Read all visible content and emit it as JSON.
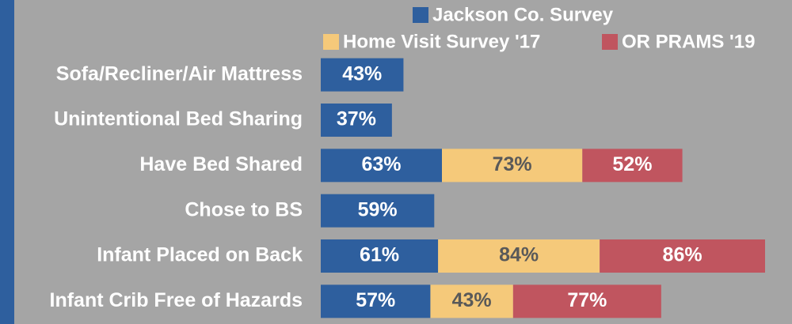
{
  "chart_data": {
    "type": "stacked-barh",
    "categories": [
      "Sofa/Recliner/Air Mattress",
      "Unintentional Bed Sharing",
      "Have Bed Shared",
      "Chose to BS",
      "Infant Placed on Back",
      "Infant Crib Free of Hazards"
    ],
    "series": [
      {
        "name": "Jackson Co. Survey",
        "color": "#2e5f9e",
        "values": [
          43,
          37,
          63,
          59,
          61,
          57
        ],
        "value_labels": [
          "43%",
          "37%",
          "63%",
          "59%",
          "61%",
          "57%"
        ]
      },
      {
        "name": "Home Visit Survey '17",
        "color": "#f5c97a",
        "values": [
          null,
          null,
          73,
          null,
          84,
          43
        ],
        "value_labels": [
          null,
          null,
          "73%",
          null,
          "84%",
          "43%"
        ]
      },
      {
        "name": "OR PRAMS '19",
        "color": "#c0555f",
        "values": [
          null,
          null,
          52,
          null,
          86,
          77
        ],
        "value_labels": [
          null,
          null,
          "52%",
          null,
          "86%",
          "77%"
        ]
      }
    ],
    "xlim": [
      0,
      245
    ]
  }
}
